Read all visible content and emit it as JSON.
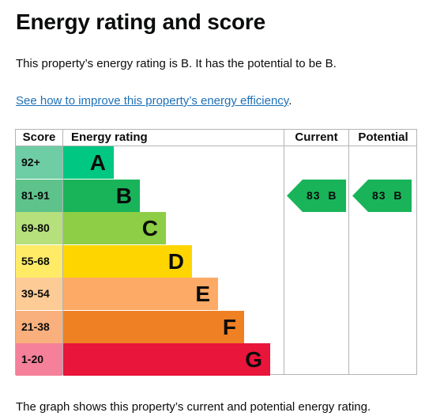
{
  "title": "Energy rating and score",
  "summary": "This property’s energy rating is B. It has the potential to be B.",
  "improve_link": "See how to improve this property’s energy efficiency",
  "improve_suffix": ".",
  "caption": "The graph shows this property’s current and potential energy rating.",
  "chart_data": {
    "type": "table",
    "headers": {
      "score": "Score",
      "rating": "Energy rating",
      "current": "Current",
      "potential": "Potential"
    },
    "bands": [
      {
        "letter": "A",
        "range": "92+",
        "score_color": "#6fcda5",
        "bar_color": "#00c781"
      },
      {
        "letter": "B",
        "range": "81-91",
        "score_color": "#5ec28b",
        "bar_color": "#19b459"
      },
      {
        "letter": "C",
        "range": "69-80",
        "score_color": "#b5e07c",
        "bar_color": "#8dce46"
      },
      {
        "letter": "D",
        "range": "55-68",
        "score_color": "#ffeb66",
        "bar_color": "#ffd500"
      },
      {
        "letter": "E",
        "range": "39-54",
        "score_color": "#fdcb95",
        "bar_color": "#fcaa65"
      },
      {
        "letter": "F",
        "range": "21-38",
        "score_color": "#f9b07c",
        "bar_color": "#ef8023"
      },
      {
        "letter": "G",
        "range": "1-20",
        "score_color": "#f5809a",
        "bar_color": "#e9153b"
      }
    ],
    "current": {
      "score": 83,
      "letter": "B",
      "label": "83  B",
      "color": "#19b459"
    },
    "potential": {
      "score": 83,
      "letter": "B",
      "label": "83  B",
      "color": "#19b459"
    }
  }
}
